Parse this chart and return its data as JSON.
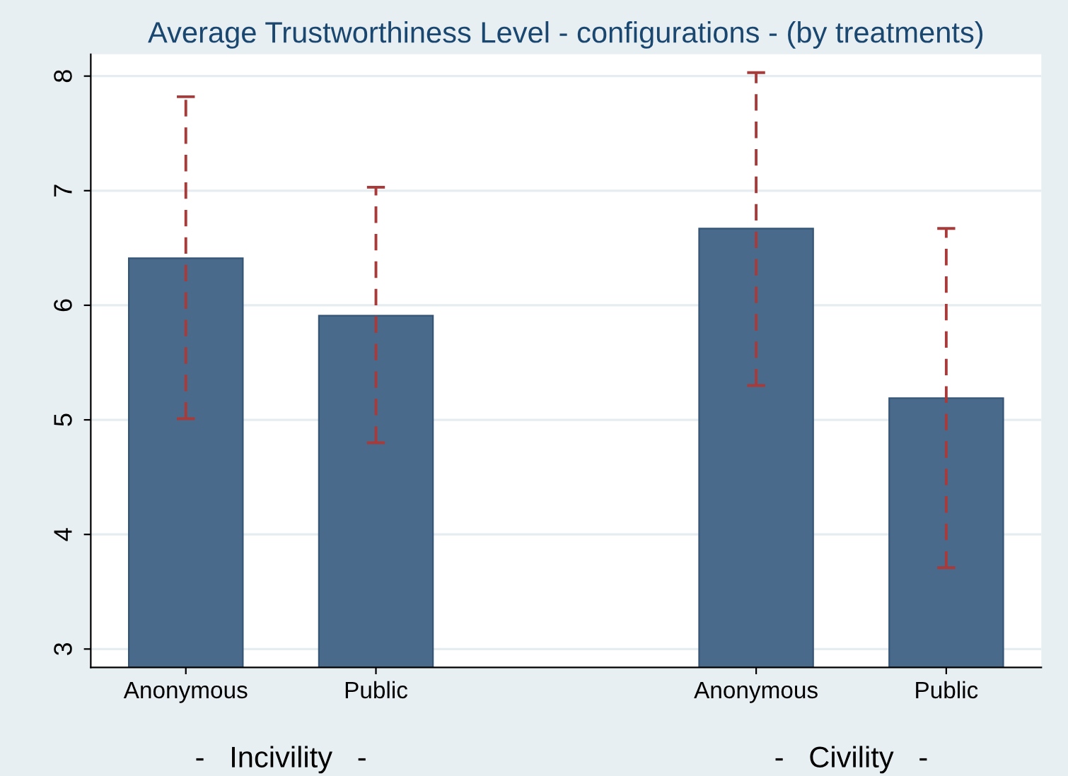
{
  "chart_data": {
    "type": "bar",
    "title": "Average Trustworthiness Level - configurations - (by treatments)",
    "categories": [
      "Anonymous",
      "Public",
      null,
      "Anonymous",
      "Public"
    ],
    "series": [
      {
        "color": "#4a6a8b",
        "values": [
          6.41,
          5.91,
          null,
          6.67,
          5.19
        ],
        "errors": [
          [
            5.01,
            7.82
          ],
          [
            4.8,
            7.03
          ],
          null,
          [
            5.3,
            8.03
          ],
          [
            3.71,
            6.67
          ]
        ]
      }
    ],
    "annotations": [
      "-   Incivility   -",
      "-   Civility   -"
    ],
    "ylim": [
      2.84,
      8.19
    ],
    "yticks": [
      3,
      4,
      5,
      6,
      7,
      8
    ],
    "grid": "y",
    "line_style": "dashed"
  }
}
